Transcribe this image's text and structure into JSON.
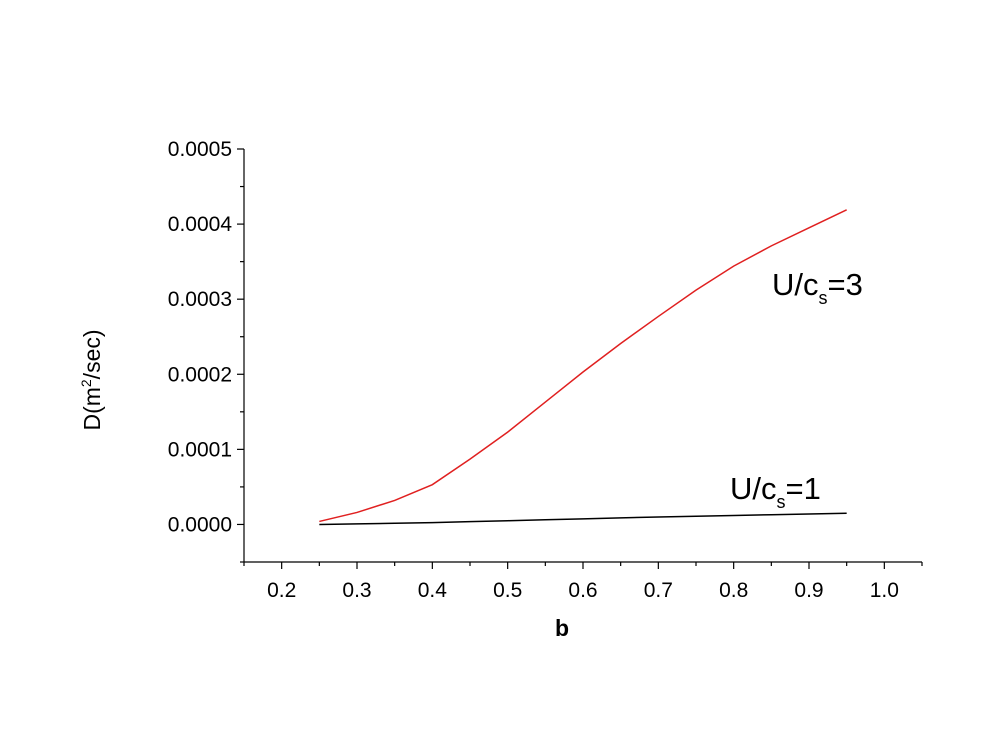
{
  "chart_data": {
    "type": "line",
    "y_label": {
      "text": "D(m",
      "sup": "2",
      "tail": "/sec)"
    },
    "x_label": "b",
    "x": [
      0.25,
      0.3,
      0.35,
      0.4,
      0.45,
      0.5,
      0.55,
      0.6,
      0.65,
      0.7,
      0.75,
      0.8,
      0.85,
      0.9,
      0.95
    ],
    "series": [
      {
        "label": {
          "text": "U/c",
          "sub": "s",
          "tail": "=3"
        },
        "color": "#e02020",
        "values": [
          4e-06,
          1.6e-05,
          3.2e-05,
          5.3e-05,
          8.7e-05,
          0.000123,
          0.000163,
          0.000203,
          0.000241,
          0.000277,
          0.000312,
          0.000344,
          0.000371,
          0.000395,
          0.000419
        ]
      },
      {
        "label": {
          "text": "U/c",
          "sub": "s",
          "tail": "=1"
        },
        "color": "#000000",
        "values": [
          0.0,
          8e-07,
          1.6e-06,
          2.5e-06,
          3.7e-06,
          5e-06,
          6.2e-06,
          7.5e-06,
          8.7e-06,
          1e-05,
          1.1e-05,
          1.2e-05,
          1.3e-05,
          1.4e-05,
          1.5e-05
        ]
      }
    ],
    "xlim": [
      0.15,
      1.05
    ],
    "ylim": [
      -5e-05,
      0.0005
    ],
    "xticks": [
      0.2,
      0.3,
      0.4,
      0.5,
      0.6,
      0.7,
      0.8,
      0.9,
      {
        "value": 1,
        "label": "1.0"
      }
    ],
    "yticks": [
      {
        "value": 0,
        "label": "0.0000"
      },
      {
        "value": 0.0001,
        "label": "0.0001"
      },
      {
        "value": 0.0002,
        "label": "0.0002"
      },
      {
        "value": 0.0003,
        "label": "0.0003"
      },
      {
        "value": 0.0004,
        "label": "0.0004"
      },
      {
        "value": 0.0005,
        "label": "0.0005"
      }
    ],
    "grid": false
  }
}
